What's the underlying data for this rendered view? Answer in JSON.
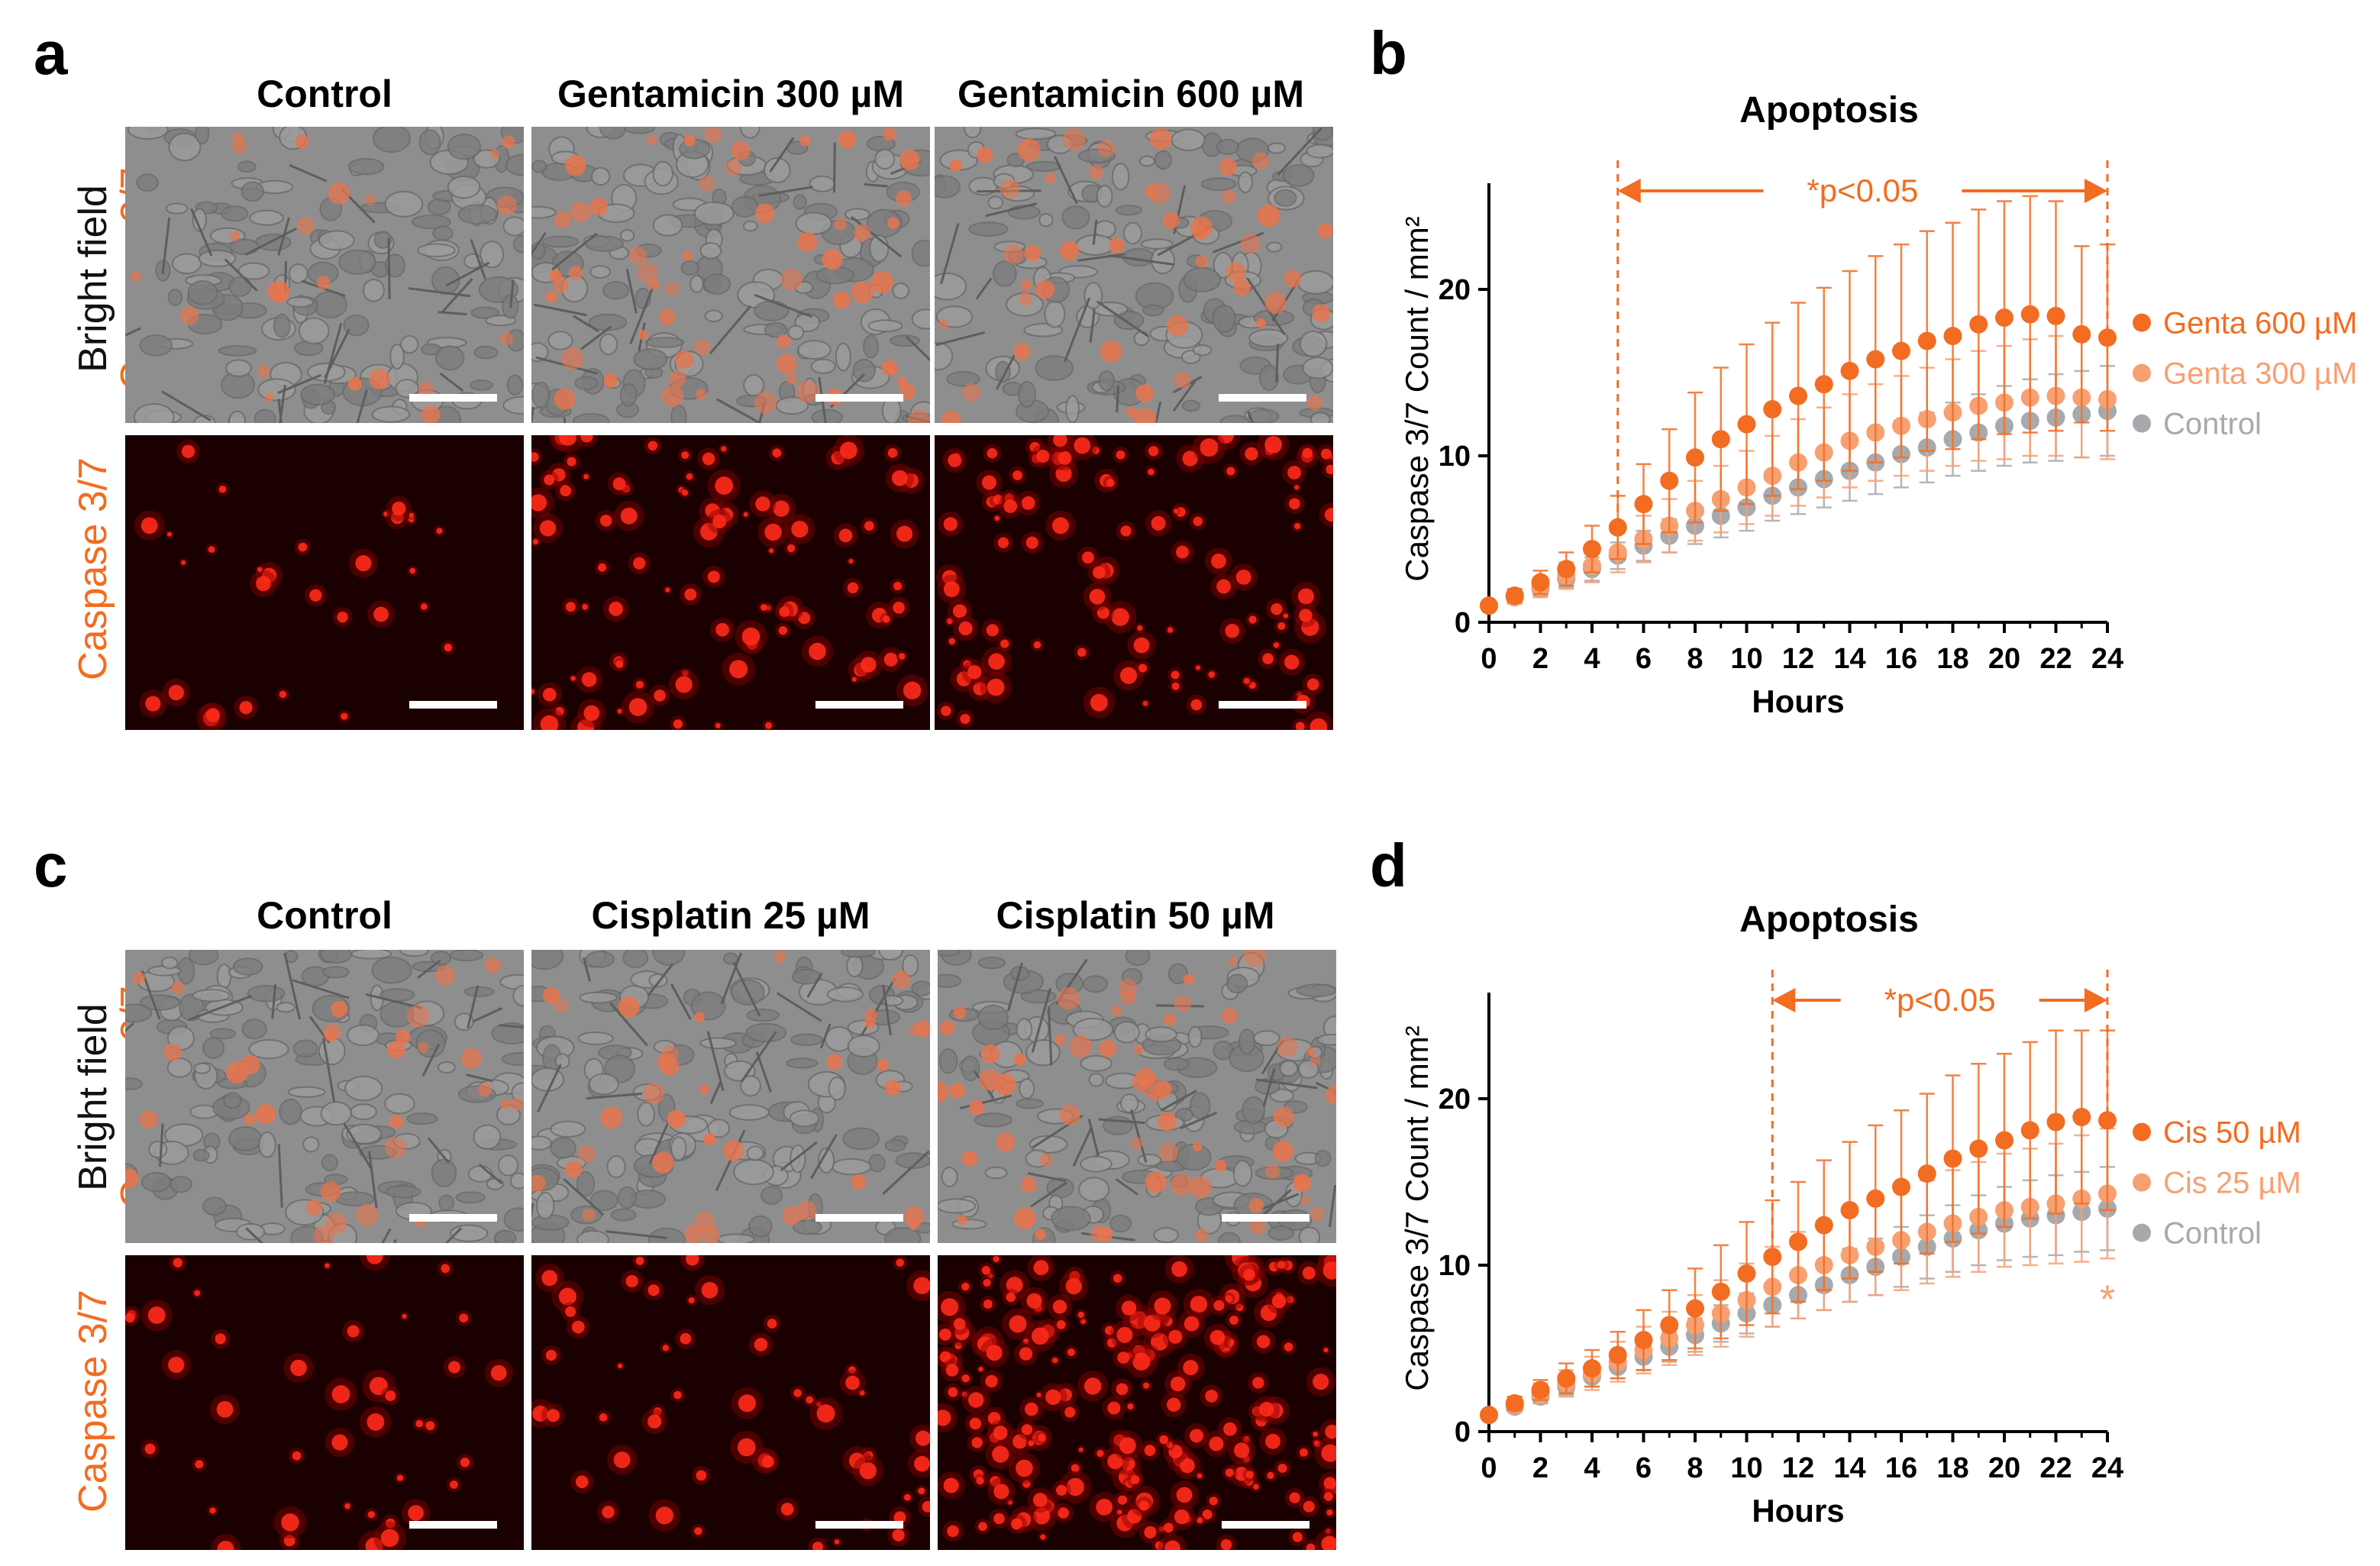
{
  "panels": {
    "a": {
      "letter": "a",
      "columns": [
        "Control",
        "Gentamicin 300 µM",
        "Gentamicin 600 µM"
      ],
      "rows": [
        {
          "line1": "Bright field",
          "line2": "Caspase 3/7"
        },
        {
          "line1": "Caspase 3/7",
          "line2": ""
        }
      ]
    },
    "b": {
      "letter": "b"
    },
    "c": {
      "letter": "c",
      "columns": [
        "Control",
        "Cisplatin 25 µM",
        "Cisplatin 50 µM"
      ],
      "rows": [
        {
          "line1": "Bright field",
          "line2": "Caspase 3/7"
        },
        {
          "line1": "Caspase 3/7",
          "line2": ""
        }
      ]
    },
    "d": {
      "letter": "d"
    }
  },
  "colors": {
    "high": "#f26c21",
    "low": "#f7a072",
    "control": "#a7a9ac",
    "annotation": "#f26c21",
    "bright_field_bg": "#8e8e8e",
    "fluorescence_bg": "#1b0000"
  },
  "chart_data": [
    {
      "type": "scatter",
      "title": "Apoptosis",
      "xlabel": "Hours",
      "ylabel": "Caspase 3/7 Count / mm²",
      "xlim": [
        0,
        24
      ],
      "ylim": [
        0,
        25
      ],
      "xticks": [
        0,
        2,
        4,
        6,
        8,
        10,
        12,
        14,
        16,
        18,
        20,
        22,
        24
      ],
      "yticks": [
        0,
        10,
        20
      ],
      "legend_position": "right",
      "annotation": {
        "text": "*p<0.05",
        "x_start": 5,
        "x_end": 24
      },
      "x": [
        0,
        1,
        2,
        3,
        4,
        5,
        6,
        7,
        8,
        9,
        10,
        11,
        12,
        13,
        14,
        15,
        16,
        17,
        18,
        19,
        20,
        21,
        22,
        23,
        24
      ],
      "series": [
        {
          "name": "Genta 600 µM",
          "color_key": "high",
          "values": [
            1.0,
            1.6,
            2.4,
            3.2,
            4.4,
            5.7,
            7.1,
            8.5,
            9.9,
            11.0,
            11.9,
            12.8,
            13.6,
            14.3,
            15.1,
            15.8,
            16.3,
            16.9,
            17.2,
            17.9,
            18.3,
            18.5,
            18.4,
            17.3,
            17.1
          ],
          "error": [
            0.2,
            0.4,
            0.7,
            1.0,
            1.4,
            1.9,
            2.4,
            3.1,
            3.9,
            4.3,
            4.8,
            5.2,
            5.6,
            5.8,
            6.0,
            6.2,
            6.4,
            6.6,
            6.8,
            6.9,
            7.0,
            7.1,
            6.9,
            5.3,
            5.6
          ]
        },
        {
          "name": "Genta 300 µM",
          "color_key": "low",
          "values": [
            1.0,
            1.5,
            2.1,
            2.8,
            3.4,
            4.2,
            5.0,
            5.8,
            6.7,
            7.4,
            8.1,
            8.8,
            9.6,
            10.2,
            10.9,
            11.4,
            11.8,
            12.2,
            12.6,
            13.0,
            13.2,
            13.5,
            13.6,
            13.5,
            13.4
          ],
          "error": [
            0.2,
            0.4,
            0.6,
            0.8,
            1.0,
            1.2,
            1.4,
            1.6,
            1.8,
            2.0,
            2.2,
            2.4,
            2.6,
            2.7,
            2.8,
            2.9,
            3.0,
            3.1,
            3.2,
            3.3,
            3.4,
            3.5,
            3.6,
            3.6,
            3.6
          ]
        },
        {
          "name": "Control",
          "color_key": "control",
          "values": [
            1.0,
            1.5,
            2.0,
            2.6,
            3.2,
            4.0,
            4.6,
            5.2,
            5.8,
            6.4,
            6.9,
            7.6,
            8.1,
            8.6,
            9.1,
            9.6,
            10.1,
            10.5,
            11.0,
            11.4,
            11.8,
            12.1,
            12.3,
            12.5,
            12.7
          ],
          "error": [
            0.1,
            0.2,
            0.4,
            0.5,
            0.7,
            0.8,
            0.9,
            1.0,
            1.1,
            1.3,
            1.4,
            1.5,
            1.6,
            1.7,
            1.8,
            1.9,
            2.0,
            2.1,
            2.2,
            2.3,
            2.4,
            2.5,
            2.6,
            2.6,
            2.7
          ]
        }
      ]
    },
    {
      "type": "scatter",
      "title": "Apoptosis",
      "xlabel": "Hours",
      "ylabel": "Caspase 3/7 Count / mm²",
      "xlim": [
        0,
        24
      ],
      "ylim": [
        0,
        25
      ],
      "xticks": [
        0,
        2,
        4,
        6,
        8,
        10,
        12,
        14,
        16,
        18,
        20,
        22,
        24
      ],
      "yticks": [
        0,
        10,
        20
      ],
      "legend_position": "right",
      "annotation": {
        "text": "*p<0.05",
        "x_start": 11,
        "x_end": 24
      },
      "extra_mark": {
        "text": "*",
        "x": 24,
        "y": 8.5,
        "color_key": "low"
      },
      "x": [
        0,
        1,
        2,
        3,
        4,
        5,
        6,
        7,
        8,
        9,
        10,
        11,
        12,
        13,
        14,
        15,
        16,
        17,
        18,
        19,
        20,
        21,
        22,
        23,
        24
      ],
      "series": [
        {
          "name": "Cis 50 µM",
          "color_key": "high",
          "values": [
            1.0,
            1.7,
            2.5,
            3.2,
            3.8,
            4.6,
            5.5,
            6.4,
            7.4,
            8.4,
            9.5,
            10.5,
            11.4,
            12.4,
            13.3,
            14.0,
            14.7,
            15.5,
            16.4,
            17.0,
            17.5,
            18.1,
            18.6,
            18.9,
            18.7
          ],
          "error": [
            0.2,
            0.4,
            0.6,
            0.9,
            1.1,
            1.4,
            1.8,
            2.1,
            2.4,
            2.8,
            3.1,
            3.4,
            3.6,
            3.9,
            4.1,
            4.4,
            4.6,
            4.8,
            5.0,
            5.1,
            5.2,
            5.3,
            5.5,
            5.2,
            5.4
          ]
        },
        {
          "name": "Cis 25 µM",
          "color_key": "low",
          "values": [
            1.0,
            1.6,
            2.3,
            2.9,
            3.5,
            4.2,
            4.9,
            5.6,
            6.4,
            7.1,
            7.9,
            8.7,
            9.4,
            10.0,
            10.6,
            11.1,
            11.5,
            12.0,
            12.5,
            12.9,
            13.3,
            13.5,
            13.7,
            14.0,
            14.3
          ],
          "error": [
            0.2,
            0.4,
            0.6,
            0.8,
            1.0,
            1.2,
            1.4,
            1.6,
            1.8,
            2.0,
            2.2,
            2.4,
            2.6,
            2.7,
            2.8,
            2.9,
            3.0,
            3.1,
            3.2,
            3.3,
            3.4,
            3.5,
            3.6,
            3.8,
            3.9
          ]
        },
        {
          "name": "Control",
          "color_key": "control",
          "values": [
            1.0,
            1.5,
            2.1,
            2.7,
            3.3,
            3.9,
            4.5,
            5.1,
            5.8,
            6.5,
            7.1,
            7.6,
            8.2,
            8.8,
            9.4,
            9.9,
            10.5,
            11.1,
            11.6,
            12.1,
            12.5,
            12.8,
            13.0,
            13.2,
            13.4
          ],
          "error": [
            0.1,
            0.3,
            0.4,
            0.5,
            0.6,
            0.7,
            0.8,
            0.9,
            1.0,
            1.1,
            1.2,
            1.3,
            1.4,
            1.5,
            1.6,
            1.7,
            1.8,
            1.9,
            2.0,
            2.1,
            2.2,
            2.3,
            2.4,
            2.4,
            2.5
          ]
        }
      ]
    }
  ]
}
